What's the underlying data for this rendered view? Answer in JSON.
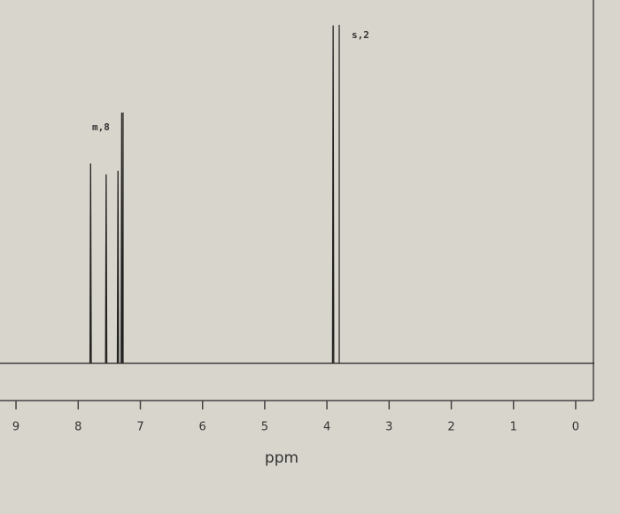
{
  "chart_data": {
    "type": "line",
    "x_label": "ppm",
    "annotations": [
      "m,8",
      "s,2"
    ],
    "x": [
      9.3,
      7.81,
      7.8,
      7.79,
      7.56,
      7.55,
      7.54,
      7.37,
      7.36,
      7.35,
      7.31,
      7.3,
      7.29,
      3.91,
      3.9,
      3.89,
      -0.3
    ],
    "series": [
      {
        "color": "#222222",
        "values": [
          0,
          0,
          55,
          0,
          0,
          52,
          0,
          0,
          53,
          0,
          0,
          69,
          0,
          0,
          93,
          0,
          0
        ]
      }
    ],
    "xlim": [
      9.3,
      -0.3
    ],
    "xticks": [
      9,
      8,
      7,
      6,
      5,
      4,
      3,
      2,
      1,
      0
    ],
    "ylim": [
      0,
      100
    ]
  }
}
